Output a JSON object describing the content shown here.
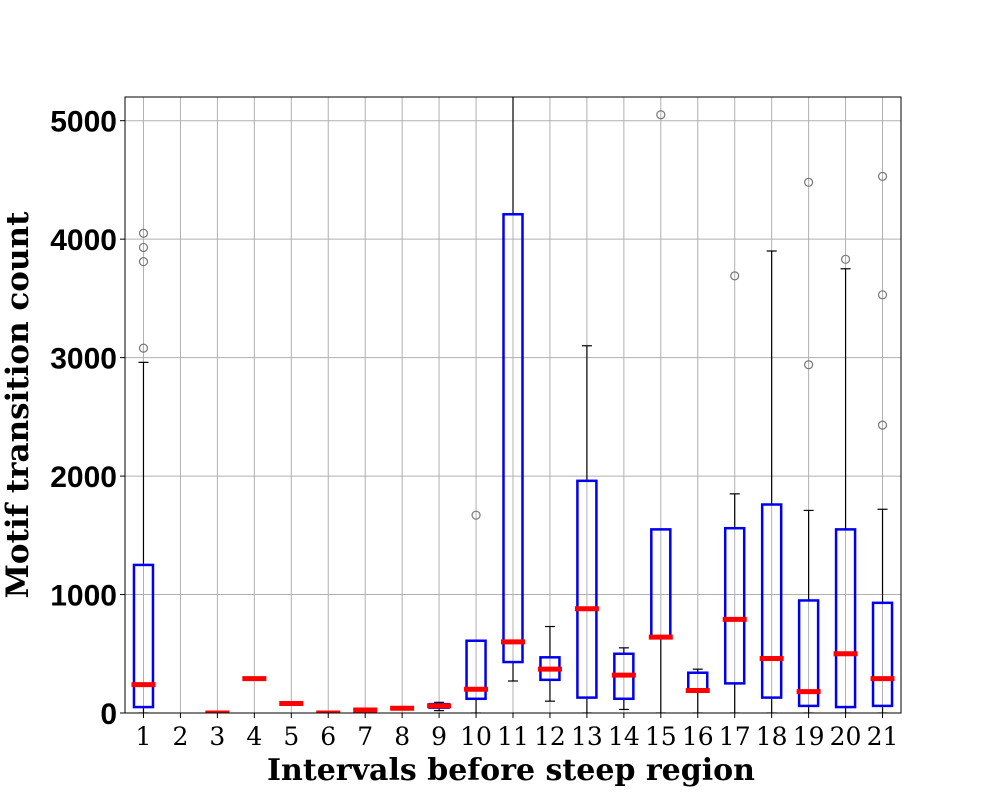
{
  "chart_data": {
    "type": "box",
    "xlabel": "Intervals before steep region",
    "ylabel": "Motif transition count",
    "categories": [
      "1",
      "2",
      "3",
      "4",
      "5",
      "6",
      "7",
      "8",
      "9",
      "10",
      "11",
      "12",
      "13",
      "14",
      "15",
      "16",
      "17",
      "18",
      "19",
      "20",
      "21"
    ],
    "ylim": [
      0,
      5200
    ],
    "yticks": [
      0,
      1000,
      2000,
      3000,
      4000,
      5000
    ],
    "grid": true,
    "colors": {
      "box": "#0000ee",
      "median": "#ff0000",
      "whisker": "#000000",
      "outlier": "#777777",
      "grid": "#b0b0b0"
    },
    "boxes": [
      {
        "label": "1",
        "q1": 50,
        "median": 240,
        "q3": 1250,
        "whisker_low": 0,
        "whisker_high": 2960,
        "outliers": [
          3080,
          3810,
          3930,
          4050
        ]
      },
      {
        "label": "2",
        "empty": true
      },
      {
        "label": "3",
        "q1": 0,
        "median": 0,
        "q3": 0,
        "whisker_low": 0,
        "whisker_high": 0,
        "outliers": []
      },
      {
        "label": "4",
        "q1": 290,
        "median": 290,
        "q3": 290,
        "whisker_low": 290,
        "whisker_high": 290,
        "outliers": []
      },
      {
        "label": "5",
        "q1": 80,
        "median": 80,
        "q3": 80,
        "whisker_low": 80,
        "whisker_high": 80,
        "outliers": []
      },
      {
        "label": "6",
        "q1": 0,
        "median": 0,
        "q3": 0,
        "whisker_low": 0,
        "whisker_high": 0,
        "outliers": []
      },
      {
        "label": "7",
        "q1": 20,
        "median": 25,
        "q3": 30,
        "whisker_low": 15,
        "whisker_high": 35,
        "outliers": []
      },
      {
        "label": "8",
        "q1": 35,
        "median": 40,
        "q3": 45,
        "whisker_low": 30,
        "whisker_high": 50,
        "outliers": []
      },
      {
        "label": "9",
        "q1": 45,
        "median": 60,
        "q3": 75,
        "whisker_low": 20,
        "whisker_high": 90,
        "outliers": []
      },
      {
        "label": "10",
        "q1": 120,
        "median": 200,
        "q3": 610,
        "whisker_low": 0,
        "whisker_high": 610,
        "outliers": [
          1670
        ]
      },
      {
        "label": "11",
        "q1": 430,
        "median": 600,
        "q3": 4210,
        "whisker_low": 270,
        "whisker_high": 5300,
        "outliers": []
      },
      {
        "label": "12",
        "q1": 280,
        "median": 370,
        "q3": 470,
        "whisker_low": 100,
        "whisker_high": 730,
        "outliers": []
      },
      {
        "label": "13",
        "q1": 130,
        "median": 880,
        "q3": 1960,
        "whisker_low": 0,
        "whisker_high": 3100,
        "outliers": []
      },
      {
        "label": "14",
        "q1": 120,
        "median": 320,
        "q3": 500,
        "whisker_low": 30,
        "whisker_high": 550,
        "outliers": []
      },
      {
        "label": "15",
        "q1": 640,
        "median": 640,
        "q3": 1550,
        "whisker_low": 0,
        "whisker_high": 1550,
        "outliers": [
          5050
        ]
      },
      {
        "label": "16",
        "q1": 190,
        "median": 190,
        "q3": 340,
        "whisker_low": 0,
        "whisker_high": 370,
        "outliers": []
      },
      {
        "label": "17",
        "q1": 250,
        "median": 790,
        "q3": 1560,
        "whisker_low": 0,
        "whisker_high": 1850,
        "outliers": [
          3690
        ]
      },
      {
        "label": "18",
        "q1": 130,
        "median": 460,
        "q3": 1760,
        "whisker_low": 0,
        "whisker_high": 3900,
        "outliers": []
      },
      {
        "label": "19",
        "q1": 60,
        "median": 180,
        "q3": 950,
        "whisker_low": 0,
        "whisker_high": 1710,
        "outliers": [
          2940,
          4480
        ]
      },
      {
        "label": "20",
        "q1": 50,
        "median": 500,
        "q3": 1550,
        "whisker_low": 0,
        "whisker_high": 3750,
        "outliers": [
          3830
        ]
      },
      {
        "label": "21",
        "q1": 60,
        "median": 290,
        "q3": 930,
        "whisker_low": 0,
        "whisker_high": 1720,
        "outliers": [
          2430,
          3530,
          4530
        ]
      }
    ]
  }
}
